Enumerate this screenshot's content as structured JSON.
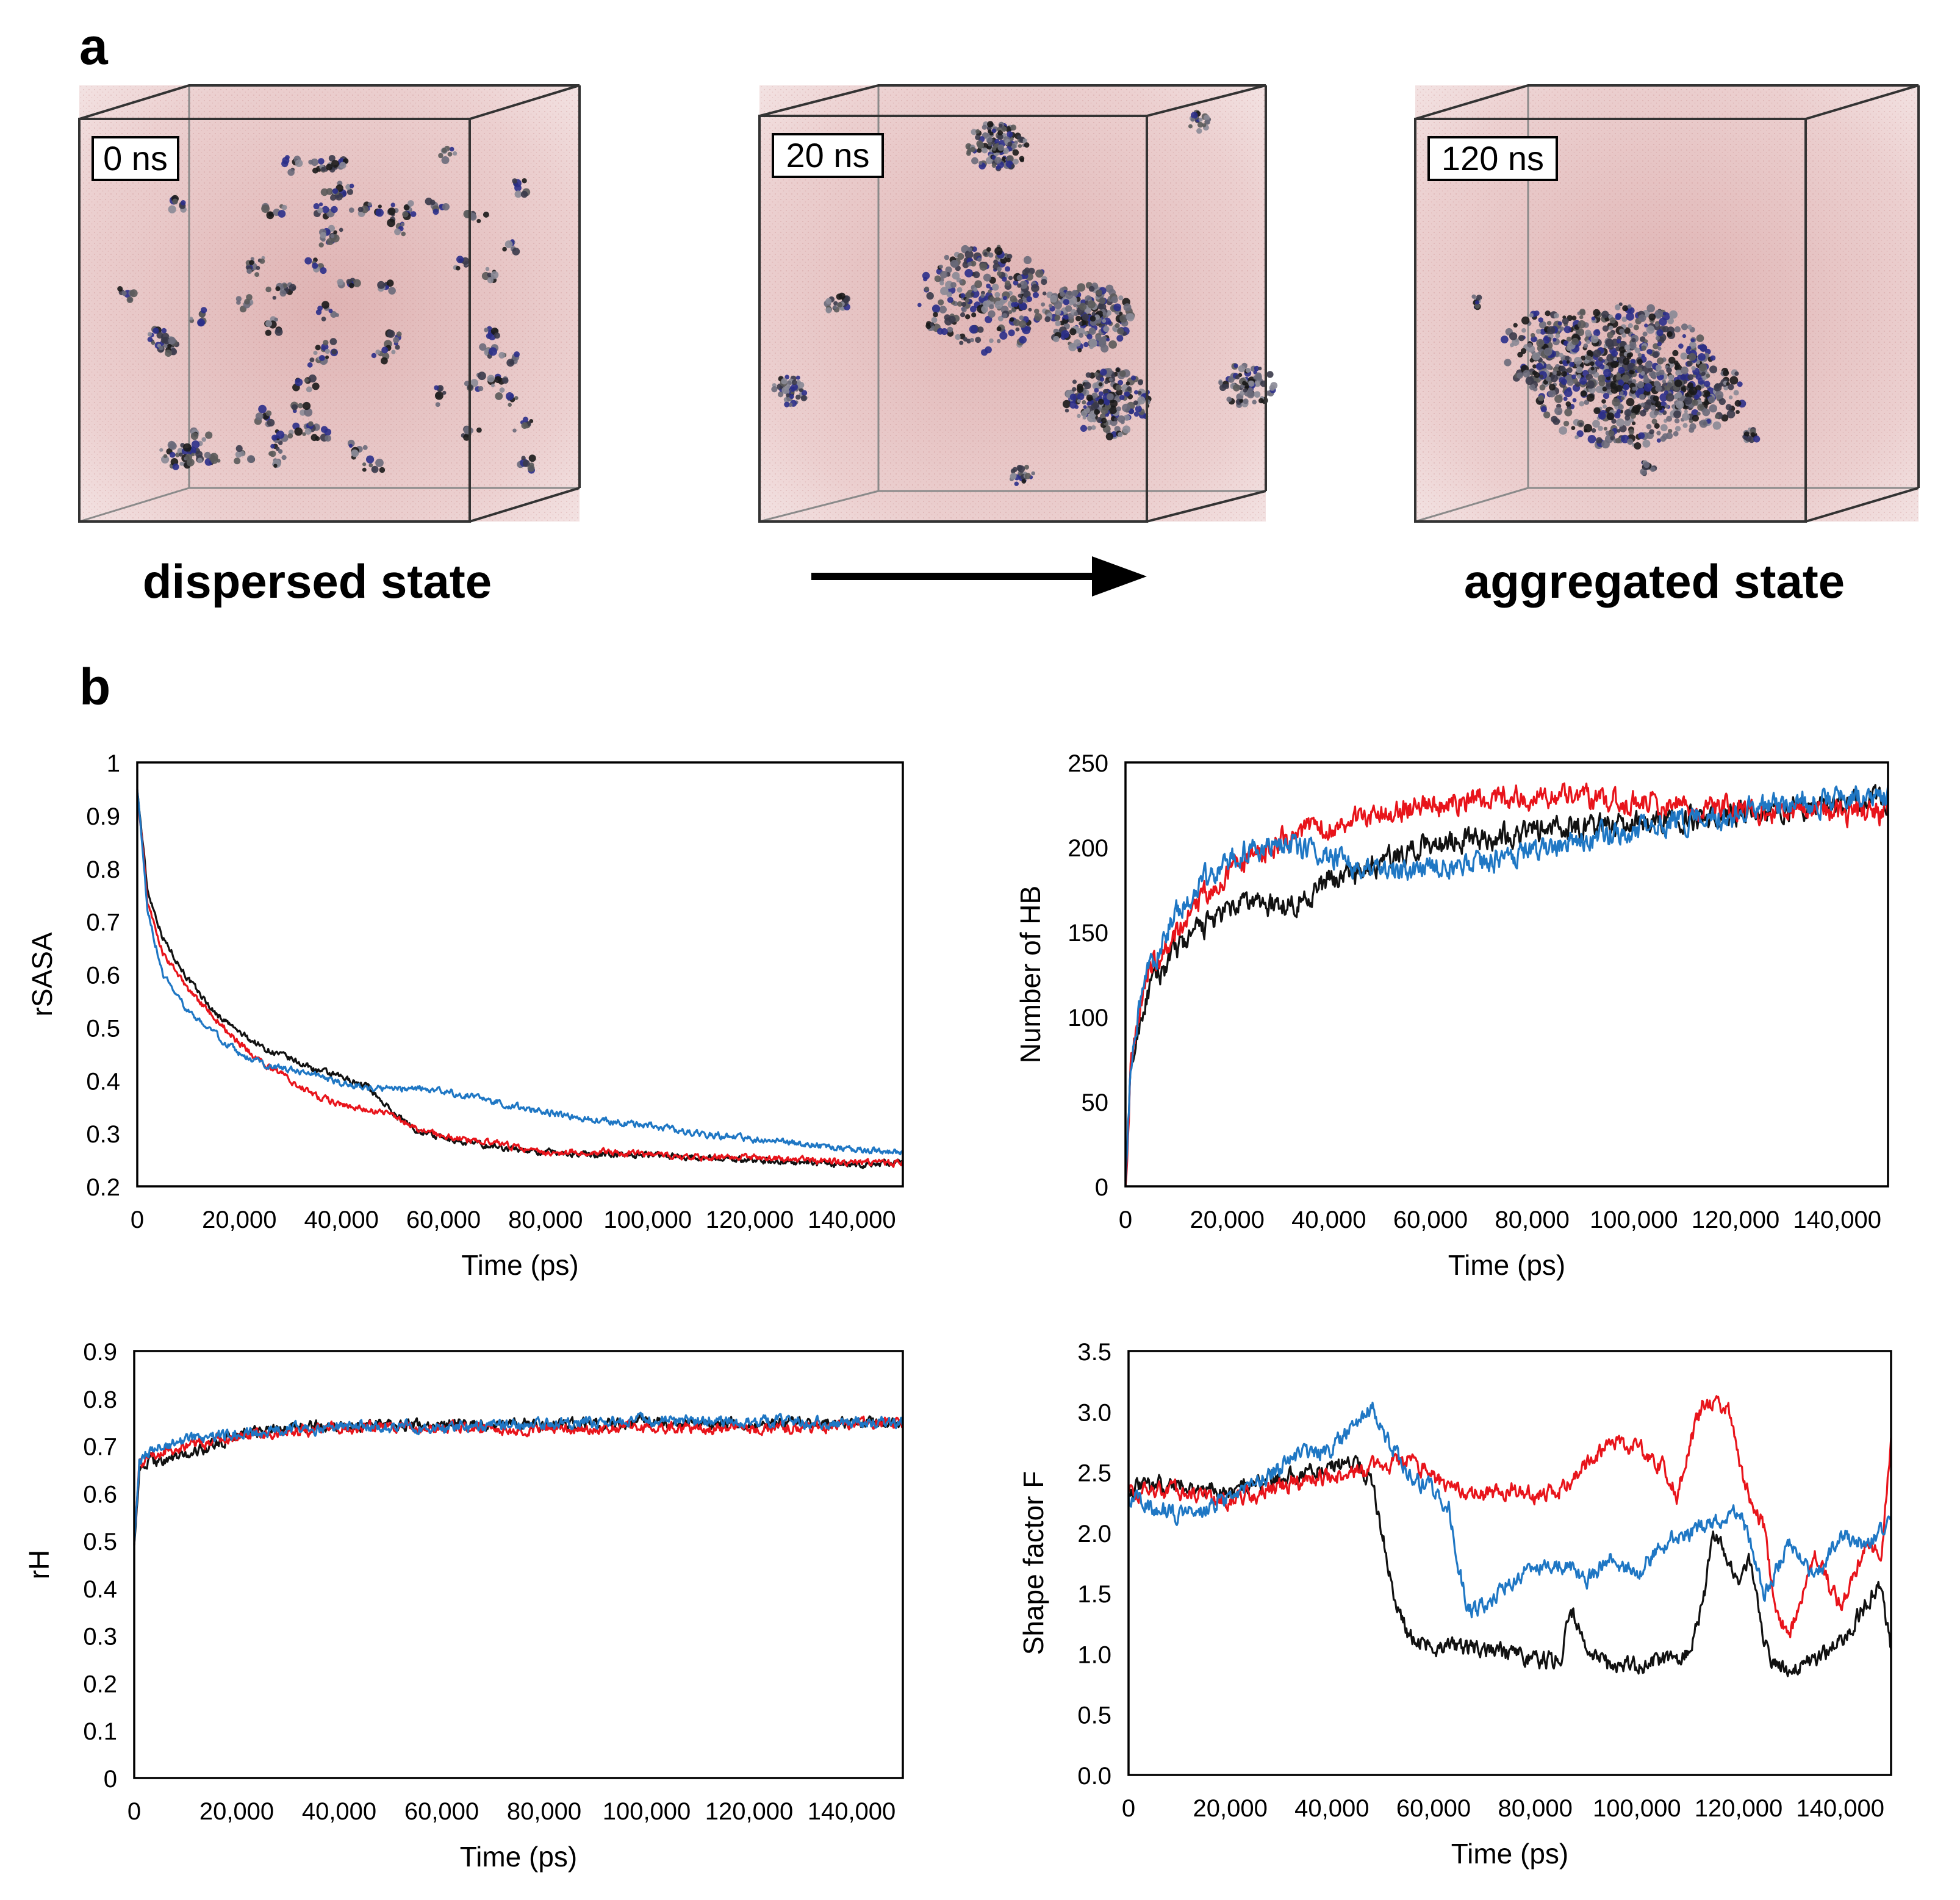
{
  "panel_a": {
    "label": "a",
    "timestamps": [
      "0 ns",
      "20 ns",
      "120 ns"
    ],
    "dispersed_label": "dispersed state",
    "aggregated_label": "aggregated state"
  },
  "panel_b": {
    "label": "b"
  },
  "colors": {
    "black": "#111111",
    "red": "#e8141b",
    "blue": "#1f77c4"
  },
  "chart_data": [
    {
      "type": "line",
      "title": "",
      "xlabel": "Time (ps)",
      "ylabel": "rSASA",
      "xlim": [
        0,
        150000
      ],
      "ylim": [
        0.2,
        1
      ],
      "xticks": [
        0,
        20000,
        40000,
        60000,
        80000,
        100000,
        120000,
        140000
      ],
      "xtick_labels": [
        "0",
        "20,000",
        "40,000",
        "60,000",
        "80,000",
        "100,000",
        "120,000",
        "140,000"
      ],
      "yticks": [
        0.2,
        0.3,
        0.4,
        0.5,
        0.6,
        0.7,
        0.8,
        0.9,
        1
      ],
      "ytick_labels": [
        "0.2",
        "0.3",
        "0.4",
        "0.5",
        "0.6",
        "0.7",
        "0.8",
        "0.9",
        "1"
      ],
      "noise": 0.006,
      "series": [
        {
          "name": "black",
          "color": "#111111",
          "x": [
            0,
            2000,
            5000,
            10000,
            15000,
            20000,
            25000,
            30000,
            35000,
            40000,
            45000,
            50000,
            55000,
            60000,
            70000,
            80000,
            90000,
            100000,
            110000,
            120000,
            130000,
            140000,
            150000
          ],
          "values": [
            0.95,
            0.76,
            0.67,
            0.59,
            0.53,
            0.49,
            0.46,
            0.44,
            0.42,
            0.405,
            0.39,
            0.34,
            0.305,
            0.29,
            0.275,
            0.265,
            0.26,
            0.26,
            0.255,
            0.25,
            0.245,
            0.24,
            0.245
          ]
        },
        {
          "name": "red",
          "color": "#e8141b",
          "x": [
            0,
            2000,
            5000,
            10000,
            15000,
            20000,
            25000,
            30000,
            35000,
            40000,
            45000,
            50000,
            55000,
            60000,
            70000,
            80000,
            90000,
            100000,
            110000,
            120000,
            130000,
            140000,
            150000
          ],
          "values": [
            0.95,
            0.74,
            0.64,
            0.57,
            0.52,
            0.47,
            0.43,
            0.4,
            0.37,
            0.355,
            0.345,
            0.335,
            0.31,
            0.295,
            0.28,
            0.265,
            0.265,
            0.26,
            0.255,
            0.255,
            0.25,
            0.245,
            0.245
          ]
        },
        {
          "name": "blue",
          "color": "#1f77c4",
          "x": [
            0,
            2000,
            5000,
            10000,
            15000,
            20000,
            25000,
            30000,
            35000,
            40000,
            45000,
            50000,
            55000,
            60000,
            70000,
            80000,
            90000,
            100000,
            110000,
            120000,
            130000,
            140000,
            150000
          ],
          "values": [
            0.95,
            0.72,
            0.6,
            0.53,
            0.49,
            0.45,
            0.43,
            0.42,
            0.41,
            0.395,
            0.385,
            0.385,
            0.385,
            0.38,
            0.36,
            0.34,
            0.325,
            0.315,
            0.3,
            0.29,
            0.28,
            0.27,
            0.265
          ]
        }
      ]
    },
    {
      "type": "line",
      "title": "",
      "xlabel": "Time (ps)",
      "ylabel": "Number of HB",
      "xlim": [
        0,
        150000
      ],
      "ylim": [
        0,
        250
      ],
      "xticks": [
        0,
        20000,
        40000,
        60000,
        80000,
        100000,
        120000,
        140000
      ],
      "xtick_labels": [
        "0",
        "20,000",
        "40,000",
        "60,000",
        "80,000",
        "100,000",
        "120,000",
        "140,000"
      ],
      "yticks": [
        0,
        50,
        100,
        150,
        200,
        250
      ],
      "ytick_labels": [
        "0",
        "50",
        "100",
        "150",
        "200",
        "250"
      ],
      "noise": 7,
      "series": [
        {
          "name": "black",
          "color": "#111111",
          "x": [
            0,
            1000,
            3000,
            5000,
            8000,
            10000,
            15000,
            20000,
            25000,
            30000,
            35000,
            40000,
            45000,
            50000,
            55000,
            60000,
            70000,
            80000,
            90000,
            100000,
            110000,
            120000,
            130000,
            140000,
            150000
          ],
          "values": [
            0,
            65,
            100,
            118,
            130,
            140,
            152,
            162,
            168,
            165,
            170,
            180,
            185,
            190,
            197,
            203,
            205,
            210,
            212,
            215,
            218,
            220,
            222,
            225,
            228
          ]
        },
        {
          "name": "red",
          "color": "#e8141b",
          "x": [
            0,
            1000,
            3000,
            5000,
            8000,
            10000,
            15000,
            20000,
            25000,
            30000,
            35000,
            40000,
            45000,
            50000,
            55000,
            60000,
            70000,
            80000,
            90000,
            100000,
            110000,
            120000,
            130000,
            140000,
            150000
          ],
          "values": [
            0,
            70,
            110,
            128,
            140,
            150,
            170,
            185,
            195,
            203,
            210,
            213,
            217,
            220,
            222,
            225,
            228,
            230,
            229,
            227,
            225,
            222,
            220,
            220,
            220
          ]
        },
        {
          "name": "blue",
          "color": "#1f77c4",
          "x": [
            0,
            1000,
            3000,
            5000,
            8000,
            10000,
            15000,
            20000,
            25000,
            30000,
            35000,
            40000,
            45000,
            50000,
            55000,
            60000,
            70000,
            80000,
            90000,
            100000,
            110000,
            120000,
            130000,
            140000,
            150000
          ],
          "values": [
            0,
            68,
            112,
            130,
            148,
            162,
            180,
            192,
            200,
            202,
            200,
            195,
            190,
            187,
            185,
            187,
            190,
            198,
            205,
            210,
            215,
            220,
            225,
            228,
            230
          ]
        }
      ]
    },
    {
      "type": "line",
      "title": "",
      "xlabel": "Time (ps)",
      "ylabel": "rH",
      "xlim": [
        0,
        150000
      ],
      "ylim": [
        0,
        0.9
      ],
      "xticks": [
        0,
        20000,
        40000,
        60000,
        80000,
        100000,
        120000,
        140000
      ],
      "xtick_labels": [
        "0",
        "20,000",
        "40,000",
        "60,000",
        "80,000",
        "100,000",
        "120,000",
        "140,000"
      ],
      "yticks": [
        0,
        0.1,
        0.2,
        0.3,
        0.4,
        0.5,
        0.6,
        0.7,
        0.8,
        0.9
      ],
      "ytick_labels": [
        "0",
        "0.1",
        "0.2",
        "0.3",
        "0.4",
        "0.5",
        "0.6",
        "0.7",
        "0.8",
        "0.9"
      ],
      "noise": 0.012,
      "series": [
        {
          "name": "black",
          "color": "#111111",
          "x": [
            0,
            1000,
            3000,
            6000,
            10000,
            15000,
            20000,
            30000,
            40000,
            60000,
            80000,
            100000,
            120000,
            140000,
            150000
          ],
          "values": [
            0.5,
            0.64,
            0.67,
            0.67,
            0.68,
            0.7,
            0.72,
            0.74,
            0.74,
            0.745,
            0.745,
            0.75,
            0.745,
            0.75,
            0.75
          ]
        },
        {
          "name": "red",
          "color": "#e8141b",
          "x": [
            0,
            1000,
            3000,
            6000,
            10000,
            15000,
            20000,
            30000,
            40000,
            60000,
            80000,
            100000,
            120000,
            140000,
            150000
          ],
          "values": [
            0.5,
            0.66,
            0.68,
            0.69,
            0.7,
            0.71,
            0.72,
            0.73,
            0.74,
            0.74,
            0.735,
            0.74,
            0.735,
            0.745,
            0.75
          ]
        },
        {
          "name": "blue",
          "color": "#1f77c4",
          "x": [
            0,
            1000,
            3000,
            6000,
            10000,
            15000,
            20000,
            30000,
            40000,
            60000,
            80000,
            100000,
            120000,
            140000,
            150000
          ],
          "values": [
            0.5,
            0.67,
            0.69,
            0.7,
            0.71,
            0.72,
            0.725,
            0.735,
            0.74,
            0.74,
            0.745,
            0.755,
            0.75,
            0.75,
            0.745
          ]
        }
      ]
    },
    {
      "type": "line",
      "title": "",
      "xlabel": "Time (ps)",
      "ylabel": "Shape factor F",
      "xlim": [
        0,
        150000
      ],
      "ylim": [
        0,
        3.5
      ],
      "xticks": [
        0,
        20000,
        40000,
        60000,
        80000,
        100000,
        120000,
        140000
      ],
      "xtick_labels": [
        "0",
        "20,000",
        "40,000",
        "60,000",
        "80,000",
        "100,000",
        "120,000",
        "140,000"
      ],
      "yticks": [
        0,
        0.5,
        1,
        1.5,
        2,
        2.5,
        3,
        3.5
      ],
      "ytick_labels": [
        "0.0",
        "0.5",
        "1.0",
        "1.5",
        "2.0",
        "2.5",
        "3.0",
        "3.5"
      ],
      "noise": 0.07,
      "series": [
        {
          "name": "black",
          "color": "#111111",
          "x": [
            0,
            5000,
            10000,
            15000,
            20000,
            30000,
            40000,
            45000,
            48000,
            50000,
            52000,
            55000,
            60000,
            70000,
            75000,
            80000,
            85000,
            87000,
            90000,
            95000,
            100000,
            105000,
            110000,
            113000,
            115000,
            118000,
            120000,
            122000,
            125000,
            127000,
            130000,
            135000,
            140000,
            145000,
            148000,
            150000
          ],
          "values": [
            2.35,
            2.4,
            2.4,
            2.35,
            2.35,
            2.45,
            2.55,
            2.6,
            2.4,
            2.0,
            1.5,
            1.15,
            1.05,
            1.05,
            1.0,
            0.95,
            0.95,
            1.4,
            1.0,
            0.9,
            0.9,
            0.95,
            1.0,
            1.4,
            2.0,
            1.8,
            1.6,
            1.8,
            1.1,
            0.9,
            0.9,
            0.95,
            1.1,
            1.4,
            1.6,
            1.0
          ]
        },
        {
          "name": "red",
          "color": "#e8141b",
          "x": [
            0,
            5000,
            10000,
            15000,
            20000,
            30000,
            40000,
            45000,
            50000,
            55000,
            60000,
            65000,
            70000,
            75000,
            80000,
            85000,
            90000,
            95000,
            100000,
            105000,
            108000,
            110000,
            113000,
            115000,
            118000,
            120000,
            122000,
            125000,
            127000,
            130000,
            135000,
            140000,
            145000,
            148000,
            150000
          ],
          "values": [
            2.3,
            2.35,
            2.35,
            2.3,
            2.25,
            2.4,
            2.45,
            2.5,
            2.55,
            2.6,
            2.45,
            2.35,
            2.3,
            2.35,
            2.3,
            2.35,
            2.55,
            2.75,
            2.7,
            2.55,
            2.3,
            2.7,
            3.05,
            3.05,
            3.0,
            2.6,
            2.3,
            2.05,
            1.4,
            1.15,
            1.8,
            1.4,
            1.9,
            1.8,
            2.8
          ]
        },
        {
          "name": "blue",
          "color": "#1f77c4",
          "x": [
            0,
            5000,
            10000,
            15000,
            20000,
            25000,
            30000,
            35000,
            40000,
            45000,
            48000,
            50000,
            52000,
            55000,
            58000,
            60000,
            63000,
            65000,
            67000,
            70000,
            75000,
            80000,
            85000,
            90000,
            95000,
            100000,
            105000,
            110000,
            115000,
            120000,
            125000,
            130000,
            135000,
            140000,
            145000,
            150000
          ],
          "values": [
            2.3,
            2.2,
            2.15,
            2.2,
            2.3,
            2.4,
            2.55,
            2.65,
            2.7,
            2.9,
            3.05,
            2.85,
            2.7,
            2.5,
            2.4,
            2.35,
            2.2,
            1.7,
            1.35,
            1.4,
            1.6,
            1.7,
            1.75,
            1.6,
            1.8,
            1.65,
            1.9,
            2.0,
            2.1,
            2.2,
            1.5,
            1.9,
            1.6,
            2.0,
            1.9,
            2.1
          ]
        }
      ]
    }
  ]
}
